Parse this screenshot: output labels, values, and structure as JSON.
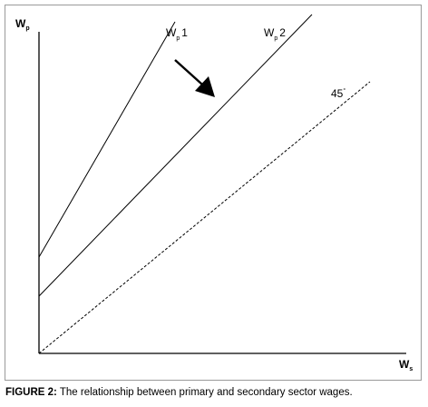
{
  "diagram": {
    "y_axis": {
      "main": "W",
      "sub": "p"
    },
    "x_axis": {
      "main": "W",
      "sub": "s"
    },
    "curves": [
      {
        "main": "W",
        "sub": "p",
        "suffix": "1"
      },
      {
        "main": "W",
        "sub": "p",
        "suffix": "2"
      }
    ],
    "reference_line": {
      "label": "45",
      "degree": "°"
    }
  },
  "caption": {
    "figure": "FIGURE 2:",
    "text": " The relationship between primary and secondary sector wages."
  }
}
